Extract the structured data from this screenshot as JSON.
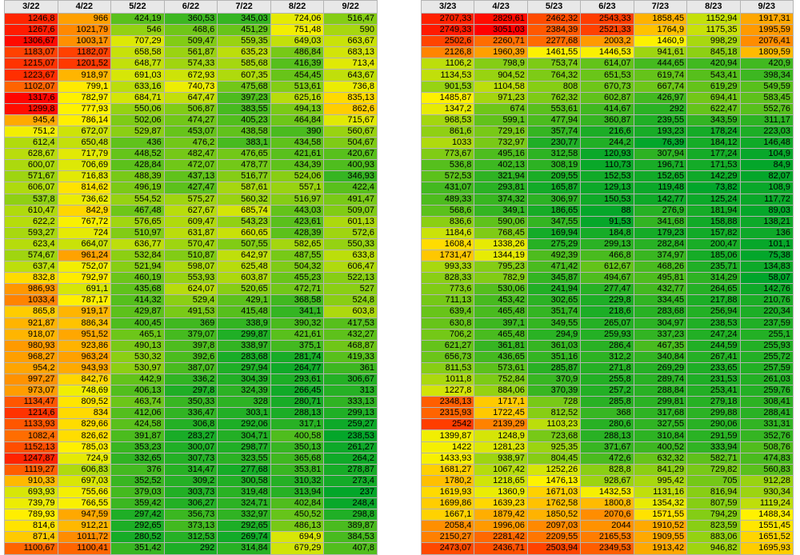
{
  "left_table": {
    "headers": [
      "3/22",
      "4/22",
      "5/22",
      "6/22",
      "7/22",
      "8/22",
      "9/22"
    ],
    "rows": [
      [
        "1246,8",
        "966",
        "424,19",
        "360,53",
        "345,03",
        "724,06",
        "516,47"
      ],
      [
        "1267,6",
        "1021,79",
        "546",
        "468,6",
        "451,29",
        "751,48",
        "590"
      ],
      [
        "1306,67",
        "1003,17",
        "707,29",
        "509,47",
        "559,35",
        "649,03",
        "663,67"
      ],
      [
        "1183,07",
        "1182,07",
        "658,58",
        "561,87",
        "635,23",
        "486,84",
        "683,13"
      ],
      [
        "1215,07",
        "1201,52",
        "648,77",
        "574,33",
        "585,68",
        "416,39",
        "713,4"
      ],
      [
        "1223,67",
        "918,97",
        "691,03",
        "672,93",
        "607,35",
        "454,45",
        "643,67"
      ],
      [
        "1102,07",
        "799,1",
        "633,16",
        "740,73",
        "475,68",
        "513,61",
        "736,8"
      ],
      [
        "1317,6",
        "782,97",
        "684,71",
        "647,47",
        "397,23",
        "625,16",
        "835,13"
      ],
      [
        "1299,8",
        "777,93",
        "550,06",
        "506,87",
        "383,55",
        "494,13",
        "862,6"
      ],
      [
        "945,4",
        "786,14",
        "502,06",
        "474,27",
        "405,23",
        "464,84",
        "715,67"
      ],
      [
        "751,2",
        "672,07",
        "529,87",
        "453,07",
        "438,58",
        "390",
        "560,67"
      ],
      [
        "612,4",
        "650,48",
        "436",
        "476,2",
        "383,1",
        "434,58",
        "504,67"
      ],
      [
        "628,67",
        "717,79",
        "448,52",
        "482,47",
        "476,65",
        "421,61",
        "420,67"
      ],
      [
        "600,07",
        "706,69",
        "428,84",
        "472,07",
        "478,77",
        "434,39",
        "400,93"
      ],
      [
        "571,67",
        "716,83",
        "488,39",
        "437,13",
        "516,77",
        "524,06",
        "346,93"
      ],
      [
        "606,07",
        "814,62",
        "496,19",
        "427,47",
        "587,61",
        "557,1",
        "422,4"
      ],
      [
        "537,8",
        "736,62",
        "554,52",
        "575,27",
        "560,32",
        "516,97",
        "491,47"
      ],
      [
        "610,47",
        "842,9",
        "467,48",
        "627,67",
        "685,74",
        "443,03",
        "509,07"
      ],
      [
        "622,2",
        "767,72",
        "576,65",
        "609,47",
        "543,23",
        "423,61",
        "601,13"
      ],
      [
        "593,27",
        "724",
        "510,97",
        "631,87",
        "660,65",
        "428,39",
        "572,6"
      ],
      [
        "623,4",
        "664,07",
        "636,77",
        "570,47",
        "507,55",
        "582,65",
        "550,33"
      ],
      [
        "574,67",
        "961,24",
        "532,84",
        "510,87",
        "642,97",
        "487,55",
        "633,8"
      ],
      [
        "637,4",
        "752,07",
        "521,94",
        "598,07",
        "625,48",
        "504,32",
        "606,47"
      ],
      [
        "832,8",
        "792,97",
        "460,19",
        "553,93",
        "603,87",
        "455,23",
        "522,13"
      ],
      [
        "986,93",
        "691,1",
        "435,68",
        "624,07",
        "520,65",
        "472,71",
        "527"
      ],
      [
        "1033,4",
        "787,17",
        "414,32",
        "529,4",
        "429,1",
        "368,58",
        "524,8"
      ],
      [
        "865,8",
        "919,17",
        "429,87",
        "491,53",
        "415,48",
        "341,1",
        "603,8"
      ],
      [
        "921,87",
        "886,34",
        "400,45",
        "369",
        "338,9",
        "390,32",
        "417,53"
      ],
      [
        "918,07",
        "951,52",
        "465,1",
        "379,07",
        "299,87",
        "421,61",
        "432,27"
      ],
      [
        "980,93",
        "923,86",
        "490,13",
        "397,8",
        "338,97",
        "375,1",
        "468,87"
      ],
      [
        "968,27",
        "963,24",
        "530,32",
        "392,6",
        "283,68",
        "281,74",
        "419,33"
      ],
      [
        "954,2",
        "943,93",
        "530,97",
        "387,07",
        "297,94",
        "264,77",
        "361"
      ],
      [
        "997,27",
        "842,76",
        "442,9",
        "336,2",
        "304,39",
        "293,61",
        "306,67"
      ],
      [
        "973,07",
        "748,69",
        "406,13",
        "297,8",
        "324,39",
        "266,45",
        "313"
      ],
      [
        "1134,47",
        "809,52",
        "463,74",
        "350,33",
        "328",
        "280,71",
        "333,13"
      ],
      [
        "1214,6",
        "834",
        "412,06",
        "336,47",
        "303,1",
        "288,13",
        "299,13"
      ],
      [
        "1133,93",
        "829,66",
        "424,58",
        "306,8",
        "292,06",
        "317,1",
        "259,27"
      ],
      [
        "1082,4",
        "826,62",
        "391,87",
        "283,27",
        "304,71",
        "400,58",
        "238,53"
      ],
      [
        "1152,13",
        "785,03",
        "353,23",
        "300,07",
        "298,77",
        "350,13",
        "261,27"
      ],
      [
        "1247,87",
        "724,9",
        "332,65",
        "307,73",
        "323,55",
        "365,68",
        "264,2"
      ],
      [
        "1119,27",
        "606,83",
        "376",
        "314,47",
        "277,68",
        "353,81",
        "278,87"
      ],
      [
        "910,33",
        "697,03",
        "352,52",
        "309,2",
        "300,58",
        "310,32",
        "273,4"
      ],
      [
        "693,93",
        "755,66",
        "379,03",
        "303,73",
        "319,48",
        "313,94",
        "237"
      ],
      [
        "739,79",
        "766,55",
        "359,42",
        "306,27",
        "324,71",
        "402,84",
        "248,4"
      ],
      [
        "789,93",
        "947,59",
        "297,42",
        "356,73",
        "332,97",
        "450,52",
        "298,8"
      ],
      [
        "814,6",
        "912,21",
        "292,65",
        "373,13",
        "292,65",
        "486,13",
        "389,87"
      ],
      [
        "871,4",
        "1011,72",
        "280,52",
        "312,53",
        "269,74",
        "694,9",
        "384,53"
      ],
      [
        "1100,67",
        "1100,41",
        "351,42",
        "292",
        "314,84",
        "679,29",
        "407,8"
      ]
    ]
  },
  "right_table": {
    "headers": [
      "3/23",
      "4/23",
      "5/23",
      "6/23",
      "7/23",
      "8/23",
      "9/23"
    ],
    "rows": [
      [
        "2707,33",
        "2829,61",
        "2462,32",
        "2543,33",
        "1858,45",
        "1152,94",
        "1917,31"
      ],
      [
        "2749,33",
        "3051,03",
        "2384,39",
        "2521,33",
        "1764,9",
        "1175,35",
        "1995,59"
      ],
      [
        "2502,6",
        "2260,71",
        "2277,68",
        "2003,2",
        "1460,9",
        "998,29",
        "2076,41"
      ],
      [
        "2126,8",
        "1960,39",
        "1461,55",
        "1446,53",
        "941,61",
        "845,18",
        "1809,59"
      ],
      [
        "1106,2",
        "798,9",
        "753,74",
        "614,07",
        "444,65",
        "420,94",
        "420,9"
      ],
      [
        "1134,53",
        "904,52",
        "764,32",
        "651,53",
        "619,74",
        "543,41",
        "398,34"
      ],
      [
        "901,53",
        "1104,58",
        "808",
        "670,73",
        "667,74",
        "619,29",
        "549,59"
      ],
      [
        "1485,87",
        "971,23",
        "762,32",
        "602,87",
        "426,97",
        "694,41",
        "583,45"
      ],
      [
        "1347,2",
        "674",
        "553,61",
        "414,67",
        "292",
        "622,47",
        "552,76"
      ],
      [
        "968,53",
        "599,1",
        "477,94",
        "360,87",
        "239,55",
        "343,59",
        "311,17"
      ],
      [
        "861,6",
        "729,16",
        "357,74",
        "216,6",
        "193,23",
        "178,24",
        "223,03"
      ],
      [
        "1033",
        "732,97",
        "230,77",
        "244,2",
        "76,39",
        "184,12",
        "146,48"
      ],
      [
        "773,67",
        "495,16",
        "312,58",
        "120,93",
        "307,94",
        "177,24",
        "104,9"
      ],
      [
        "536,8",
        "402,13",
        "308,19",
        "110,73",
        "196,71",
        "171,53",
        "84,9"
      ],
      [
        "572,53",
        "321,94",
        "209,55",
        "152,53",
        "152,65",
        "142,29",
        "82,07"
      ],
      [
        "431,07",
        "293,81",
        "165,87",
        "129,13",
        "119,48",
        "73,82",
        "108,9"
      ],
      [
        "489,33",
        "374,32",
        "306,97",
        "150,53",
        "142,77",
        "125,24",
        "117,72"
      ],
      [
        "568,6",
        "349,1",
        "186,65",
        "88",
        "276,9",
        "181,94",
        "89,03"
      ],
      [
        "836,6",
        "590,06",
        "347,55",
        "91,53",
        "341,68",
        "158,88",
        "138,21"
      ],
      [
        "1184,6",
        "768,45",
        "169,94",
        "184,8",
        "179,23",
        "157,82",
        "136"
      ],
      [
        "1608,4",
        "1338,26",
        "275,29",
        "299,13",
        "282,84",
        "200,47",
        "101,1"
      ],
      [
        "1731,47",
        "1344,19",
        "492,39",
        "466,8",
        "374,97",
        "185,06",
        "75,38"
      ],
      [
        "993,33",
        "795,23",
        "471,42",
        "612,67",
        "468,26",
        "235,71",
        "134,83"
      ],
      [
        "828,33",
        "782,9",
        "345,87",
        "494,67",
        "495,81",
        "314,29",
        "58,07"
      ],
      [
        "773,6",
        "530,06",
        "241,94",
        "277,47",
        "432,77",
        "264,65",
        "142,76"
      ],
      [
        "711,13",
        "453,42",
        "302,65",
        "229,8",
        "334,45",
        "217,88",
        "210,76"
      ],
      [
        "639,4",
        "465,48",
        "351,74",
        "218,6",
        "283,68",
        "256,94",
        "220,34"
      ],
      [
        "630,8",
        "397,1",
        "349,55",
        "265,07",
        "304,97",
        "238,53",
        "237,59"
      ],
      [
        "706,2",
        "465,48",
        "294,9",
        "259,93",
        "337,23",
        "247,24",
        "255,1"
      ],
      [
        "621,27",
        "361,81",
        "361,03",
        "286,4",
        "467,35",
        "244,59",
        "255,93"
      ],
      [
        "656,73",
        "436,65",
        "351,16",
        "312,2",
        "340,84",
        "267,41",
        "255,72"
      ],
      [
        "811,53",
        "573,61",
        "285,87",
        "271,8",
        "269,29",
        "233,65",
        "257,59"
      ],
      [
        "1011,8",
        "752,84",
        "370,9",
        "255,8",
        "289,74",
        "231,53",
        "261,03"
      ],
      [
        "1227,8",
        "884,06",
        "370,39",
        "257,2",
        "288,84",
        "253,41",
        "259,76"
      ],
      [
        "2348,13",
        "1717,1",
        "728",
        "285,8",
        "299,81",
        "279,18",
        "308,41"
      ],
      [
        "2315,93",
        "1722,45",
        "812,52",
        "368",
        "317,68",
        "299,88",
        "288,41"
      ],
      [
        "2542",
        "2139,29",
        "1103,23",
        "280,6",
        "327,55",
        "290,06",
        "331,31"
      ],
      [
        "1399,87",
        "1248,9",
        "723,68",
        "288,13",
        "310,84",
        "291,59",
        "352,76"
      ],
      [
        "1422",
        "1281,23",
        "925,35",
        "371,67",
        "400,52",
        "333,94",
        "508,76"
      ],
      [
        "1433,93",
        "938,97",
        "804,45",
        "472,6",
        "632,32",
        "582,71",
        "474,83"
      ],
      [
        "1681,27",
        "1067,42",
        "1252,26",
        "828,8",
        "841,29",
        "729,82",
        "560,83"
      ],
      [
        "1780,2",
        "1218,65",
        "1476,13",
        "928,67",
        "995,42",
        "705",
        "912,28"
      ],
      [
        "1619,93",
        "1360,9",
        "1671,03",
        "1432,53",
        "1131,16",
        "816,94",
        "930,34"
      ],
      [
        "1699,86",
        "1639,23",
        "1762,58",
        "1800,8",
        "1354,32",
        "807,59",
        "1119,24"
      ],
      [
        "1667,1",
        "1879,42",
        "1850,52",
        "2070,6",
        "1571,55",
        "794,29",
        "1488,34"
      ],
      [
        "2058,4",
        "1996,06",
        "2097,03",
        "2044",
        "1910,52",
        "823,59",
        "1551,45"
      ],
      [
        "2150,27",
        "2281,42",
        "2209,55",
        "2165,53",
        "1909,55",
        "883,06",
        "1651,52"
      ],
      [
        "2473,07",
        "2436,71",
        "2503,94",
        "2349,53",
        "1913,42",
        "946,82",
        "1695,93"
      ]
    ]
  }
}
